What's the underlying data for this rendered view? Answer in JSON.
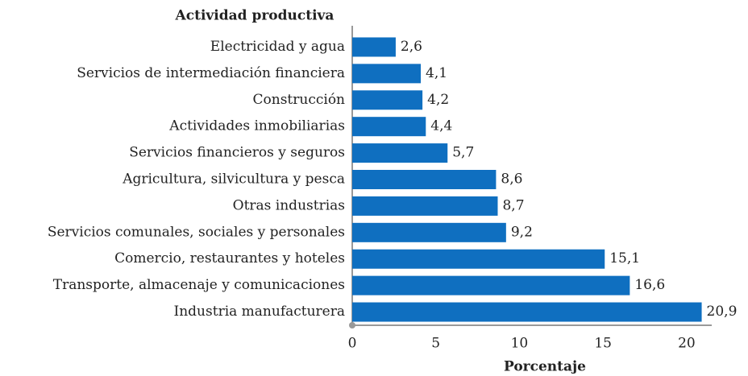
{
  "chart_data": {
    "type": "bar",
    "orientation": "horizontal",
    "title": "Actividad productiva",
    "x_label": "Porcentaje",
    "categories": [
      "Electricidad y agua",
      "Servicios de intermediación financiera",
      "Construcción",
      "Actividades inmobiliarias",
      "Servicios financieros y seguros",
      "Agricultura, silvicultura y pesca",
      "Otras industrias",
      "Servicios comunales, sociales y personales",
      "Comercio, restaurantes y hoteles",
      "Transporte, almacenaje y comunicaciones",
      "Industria manufacturera"
    ],
    "values": [
      2.6,
      4.1,
      4.2,
      4.4,
      5.7,
      8.6,
      8.7,
      9.2,
      15.1,
      16.6,
      20.9
    ],
    "value_labels": [
      "2,6",
      "4,1",
      "4,2",
      "4,4",
      "5,7",
      "8,6",
      "8,7",
      "9,2",
      "15,1",
      "16,6",
      "20,9"
    ],
    "color": "#0f6fc0",
    "xlim": [
      0,
      21.5
    ],
    "xticks": [
      0,
      5,
      10,
      15,
      20
    ],
    "grid": false
  }
}
